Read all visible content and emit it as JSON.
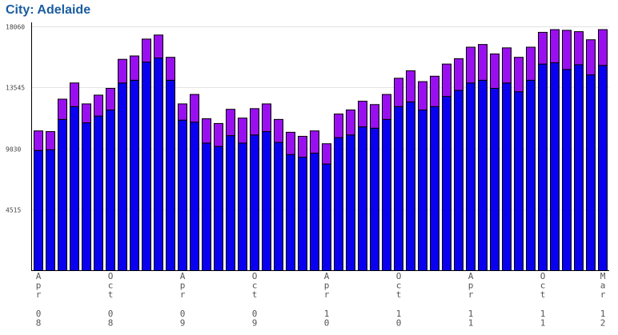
{
  "chart_data": {
    "type": "bar",
    "stacked": true,
    "title": "City: Adelaide",
    "ylim": [
      0,
      18060
    ],
    "yticks": [
      "4515",
      "9030",
      "13545",
      "18060"
    ],
    "xtick_labels": [
      {
        "index": 0,
        "month": "Apr",
        "year": "08"
      },
      {
        "index": 6,
        "month": "Oct",
        "year": "08"
      },
      {
        "index": 12,
        "month": "Apr",
        "year": "09"
      },
      {
        "index": 18,
        "month": "Oct",
        "year": "09"
      },
      {
        "index": 24,
        "month": "Apr",
        "year": "10"
      },
      {
        "index": 30,
        "month": "Oct",
        "year": "10"
      },
      {
        "index": 36,
        "month": "Apr",
        "year": "11"
      },
      {
        "index": 42,
        "month": "Oct",
        "year": "11"
      },
      {
        "index": 47,
        "month": "Mar",
        "year": "12"
      }
    ],
    "categories": [
      "Apr 08",
      "May 08",
      "Jun 08",
      "Jul 08",
      "Aug 08",
      "Sep 08",
      "Oct 08",
      "Nov 08",
      "Dec 08",
      "Jan 09",
      "Feb 09",
      "Mar 09",
      "Apr 09",
      "May 09",
      "Jun 09",
      "Jul 09",
      "Aug 09",
      "Sep 09",
      "Oct 09",
      "Nov 09",
      "Dec 09",
      "Jan 10",
      "Feb 10",
      "Mar 10",
      "Apr 10",
      "May 10",
      "Jun 10",
      "Jul 10",
      "Aug 10",
      "Sep 10",
      "Oct 10",
      "Nov 10",
      "Dec 10",
      "Jan 11",
      "Feb 11",
      "Mar 11",
      "Apr 11",
      "May 11",
      "Jun 11",
      "Jul 11",
      "Aug 11",
      "Sep 11",
      "Oct 11",
      "Nov 11",
      "Dec 11",
      "Jan 12",
      "Feb 12",
      "Mar 12"
    ],
    "series": [
      {
        "color": "#0a00f0",
        "values": [
          8900,
          8950,
          11200,
          12150,
          10950,
          11450,
          11900,
          13900,
          14100,
          15450,
          15750,
          14100,
          11150,
          11000,
          9450,
          9200,
          10000,
          9450,
          10050,
          10300,
          9500,
          8600,
          8400,
          8700,
          7900,
          9850,
          10050,
          10650,
          10550,
          11200,
          12150,
          12500,
          11900,
          12150,
          12900,
          13350,
          13900,
          14100,
          13500,
          13900,
          13250,
          14100,
          15300,
          15400,
          14900,
          15250,
          14500,
          15200
        ]
      },
      {
        "color": "#9a0ff0",
        "values": [
          1450,
          1350,
          1500,
          1750,
          1400,
          1550,
          1600,
          1750,
          1800,
          1700,
          1700,
          1700,
          1200,
          2050,
          1800,
          1700,
          1950,
          1850,
          1950,
          2050,
          1700,
          1650,
          1550,
          1650,
          1500,
          1750,
          1850,
          1900,
          1750,
          1850,
          2100,
          2300,
          2100,
          2250,
          2400,
          2350,
          2650,
          2650,
          2550,
          2600,
          2550,
          2450,
          2350,
          2450,
          2900,
          2450,
          2600,
          2650
        ]
      }
    ]
  }
}
